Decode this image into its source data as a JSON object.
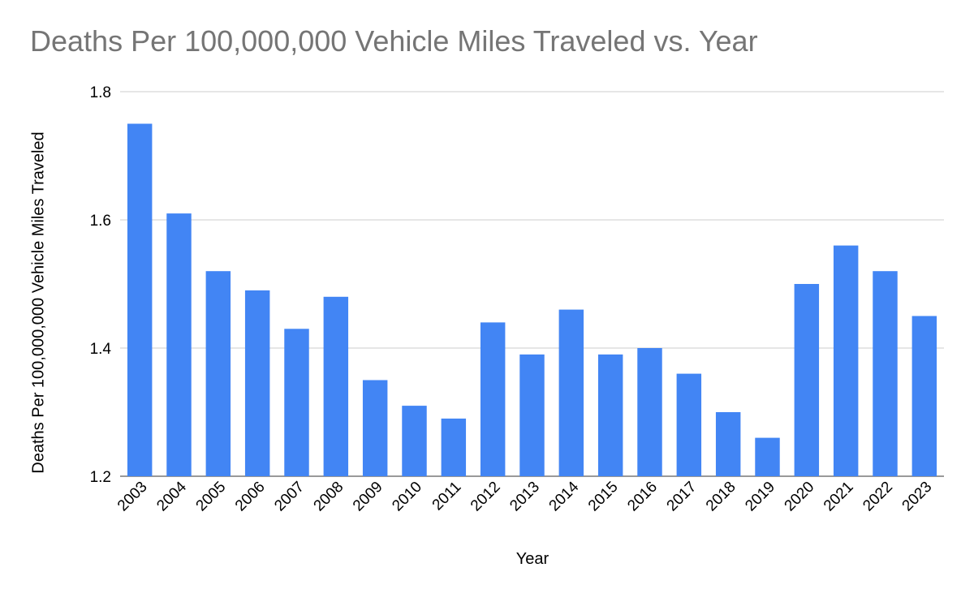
{
  "chart_data": {
    "type": "bar",
    "title": "Deaths Per 100,000,000 Vehicle Miles Traveled vs. Year",
    "xlabel": "Year",
    "ylabel": "Deaths Per 100,000,000 Vehicle Miles Traveled",
    "categories": [
      "2003",
      "2004",
      "2005",
      "2006",
      "2007",
      "2008",
      "2009",
      "2010",
      "2011",
      "2012",
      "2013",
      "2014",
      "2015",
      "2016",
      "2017",
      "2018",
      "2019",
      "2020",
      "2021",
      "2022",
      "2023"
    ],
    "values": [
      1.75,
      1.61,
      1.52,
      1.49,
      1.43,
      1.48,
      1.35,
      1.31,
      1.29,
      1.44,
      1.39,
      1.46,
      1.39,
      1.4,
      1.36,
      1.3,
      1.26,
      1.5,
      1.56,
      1.52,
      1.45
    ],
    "ylim": [
      1.2,
      1.8
    ],
    "yticks": [
      "1.2",
      "1.4",
      "1.6",
      "1.8"
    ],
    "grid": true,
    "legend": "none",
    "bar_color": "#4285f4",
    "grid_color": "#cccccc",
    "title_color": "#757575"
  }
}
